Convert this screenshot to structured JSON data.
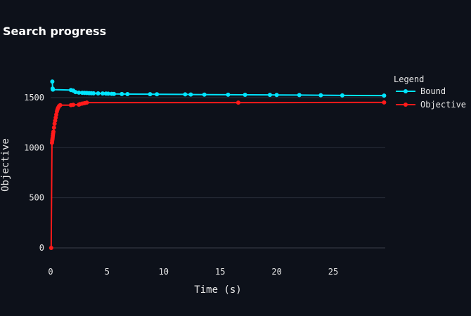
{
  "chart_data": {
    "type": "line",
    "title": "Search progress",
    "xlabel": "Time (s)",
    "ylabel": "Objective",
    "xlim": [
      0,
      29.6
    ],
    "ylim": [
      0,
      1700
    ],
    "x_ticks": [
      0,
      5,
      10,
      15,
      20,
      25
    ],
    "y_ticks": [
      0,
      500,
      1000,
      1500
    ],
    "grid": true,
    "legend": {
      "title": "Legend",
      "placement": "right"
    },
    "series": [
      {
        "name": "Bound",
        "color": "#00e5ff",
        "x": [
          0.15,
          0.18,
          0.2,
          1.8,
          2.0,
          2.2,
          2.5,
          2.8,
          3.0,
          3.2,
          3.4,
          3.6,
          3.8,
          4.2,
          4.6,
          4.9,
          5.1,
          5.4,
          5.6,
          6.3,
          6.8,
          8.8,
          9.4,
          11.9,
          12.4,
          13.6,
          15.7,
          17.2,
          19.4,
          20.0,
          22.0,
          23.9,
          25.8,
          29.5
        ],
        "y": [
          1660,
          1590,
          1580,
          1575,
          1570,
          1555,
          1550,
          1548,
          1547,
          1546,
          1545,
          1544,
          1543,
          1542,
          1541,
          1540,
          1539,
          1538,
          1537,
          1536,
          1535,
          1534,
          1533,
          1532,
          1531,
          1530,
          1529,
          1528,
          1527,
          1526,
          1525,
          1524,
          1522,
          1520
        ]
      },
      {
        "name": "Objective",
        "color": "#ff1a1a",
        "x": [
          0.05,
          0.12,
          0.14,
          0.16,
          0.18,
          0.2,
          0.22,
          0.25,
          0.3,
          0.35,
          0.4,
          0.45,
          0.5,
          0.55,
          0.6,
          0.65,
          0.7,
          0.75,
          0.8,
          0.85,
          1.8,
          2.0,
          2.5,
          2.6,
          2.8,
          3.0,
          3.2,
          16.6,
          29.5
        ],
        "y": [
          0,
          1050,
          1070,
          1085,
          1100,
          1120,
          1140,
          1160,
          1200,
          1240,
          1270,
          1300,
          1330,
          1360,
          1380,
          1395,
          1405,
          1415,
          1420,
          1425,
          1425,
          1428,
          1430,
          1435,
          1440,
          1445,
          1450,
          1450,
          1452
        ]
      }
    ]
  }
}
